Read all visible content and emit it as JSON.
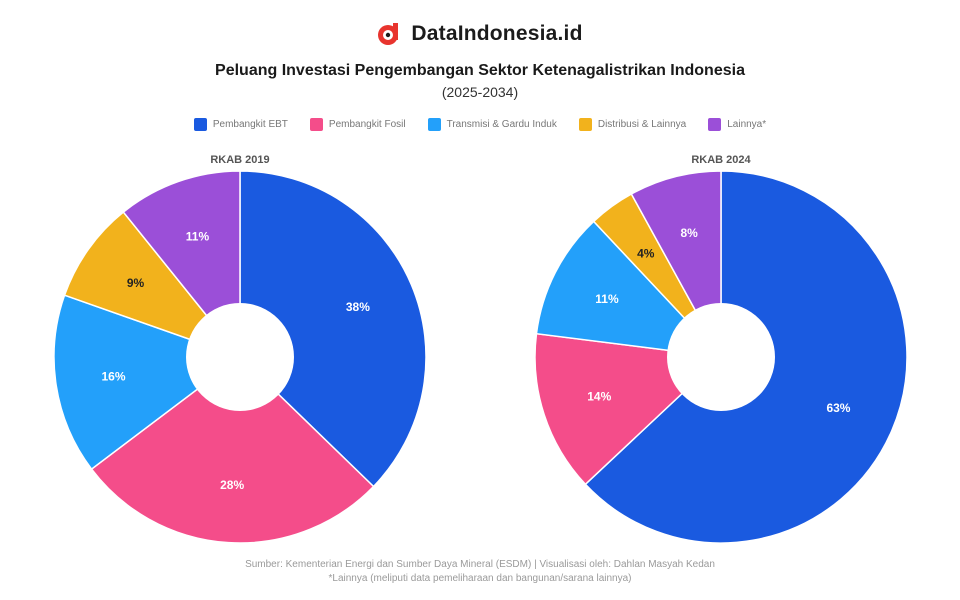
{
  "brand": {
    "name": "DataIndonesia.id",
    "logo_icon": "dataindonesia-logo-icon",
    "accent": "#e8342e"
  },
  "header": {
    "title": "Peluang Investasi Pengembangan Sektor Ketenagalistrikan Indonesia",
    "subtitle": "(2025-2034)"
  },
  "legend": [
    {
      "label": "Pembangkit EBT",
      "color": "#1a5ae0"
    },
    {
      "label": "Pembangkit Fosil",
      "color": "#f44d8a"
    },
    {
      "label": "Transmisi & Gardu Induk",
      "color": "#23a0fa"
    },
    {
      "label": "Distribusi & Lainnya",
      "color": "#f2b21c"
    },
    {
      "label": "Lainnya*",
      "color": "#9b4fd8"
    }
  ],
  "chart_data": [
    {
      "type": "pie",
      "title": "RKAB 2019",
      "labels": [
        "Pembangkit EBT",
        "Pembangkit Fosil",
        "Transmisi & Gardu Induk",
        "Distribusi & Lainnya",
        "Lainnya*"
      ],
      "values": [
        38,
        28,
        16,
        9,
        11
      ],
      "data_labels": [
        "38%",
        "28%",
        "16%",
        "9%",
        "11%"
      ],
      "colors": [
        "#1a5ae0",
        "#f44d8a",
        "#23a0fa",
        "#f2b21c",
        "#9b4fd8"
      ],
      "donut": true
    },
    {
      "type": "pie",
      "title": "RKAB 2024",
      "labels": [
        "Pembangkit EBT",
        "Pembangkit Fosil",
        "Transmisi & Gardu Induk",
        "Distribusi & Lainnya",
        "Lainnya*"
      ],
      "values": [
        63,
        14,
        11,
        4,
        8
      ],
      "data_labels": [
        "63%",
        "14%",
        "11%",
        "4%",
        "8%"
      ],
      "colors": [
        "#1a5ae0",
        "#f44d8a",
        "#23a0fa",
        "#f2b21c",
        "#9b4fd8"
      ],
      "donut": true
    }
  ],
  "footer": {
    "source": "Sumber: Kementerian Energi dan Sumber Daya Mineral (ESDM) | Visualisasi oleh: Dahlan Masyah Kedan",
    "note": "*Lainnya (meliputi data pemeliharaan dan bangunan/sarana lainnya)"
  }
}
